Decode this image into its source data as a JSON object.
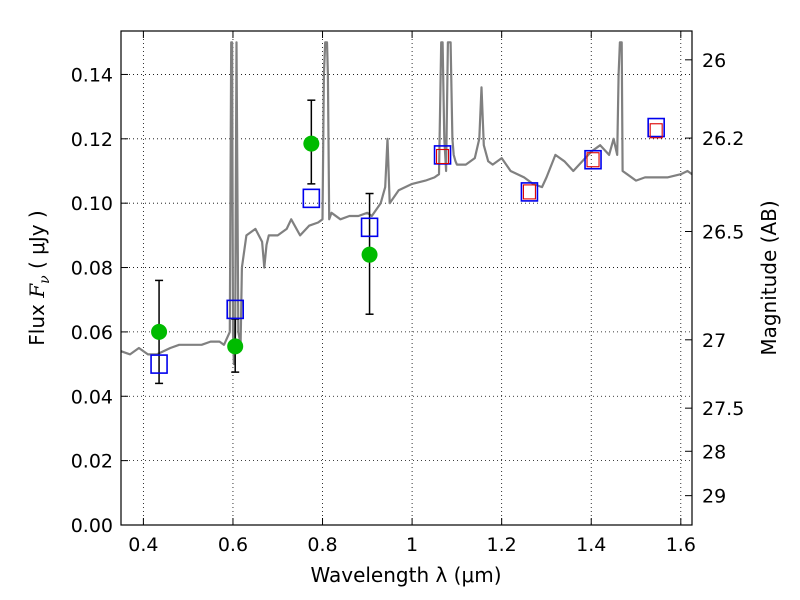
{
  "chart_data": {
    "type": "scatter",
    "xlabel": "Wavelength  λ (μm)",
    "ylabel": "Flux  F_ν  ( μJy )",
    "ylabel_parts": {
      "prefix": "Flux  ",
      "sym_main": "F",
      "sym_sub": "ν",
      "suffix": "  ( μJy )"
    },
    "y2label": "Magnitude (AB)",
    "xlim": [
      0.35,
      1.625
    ],
    "ylim": [
      0.0,
      0.1535
    ],
    "x_ticks": [
      0.4,
      0.6,
      0.8,
      1.0,
      1.2,
      1.4,
      1.6
    ],
    "x_tick_labels": [
      "0.4",
      "0.6",
      "0.8",
      "1",
      "1.2",
      "1.4",
      "1.6"
    ],
    "y_ticks": [
      0.0,
      0.02,
      0.04,
      0.06,
      0.08,
      0.1,
      0.12,
      0.14
    ],
    "y_tick_labels": [
      "0.00",
      "0.02",
      "0.04",
      "0.06",
      "0.08",
      "0.10",
      "0.12",
      "0.14"
    ],
    "mag_ticks": [
      26,
      26.2,
      26.5,
      27,
      27.5,
      28,
      29
    ],
    "mag_tick_labels": [
      "26",
      "26.2",
      "26.5",
      "27",
      "27.5",
      "28",
      "29"
    ],
    "grid": true,
    "colors": {
      "model": "#808080",
      "observed": "#00bb00",
      "model_box": "#0000ee",
      "inner_box": "#dd0000",
      "errorbar": "#000000"
    },
    "model_spectrum": {
      "x": [
        0.35,
        0.37,
        0.39,
        0.41,
        0.43,
        0.46,
        0.48,
        0.5,
        0.53,
        0.55,
        0.57,
        0.58,
        0.593,
        0.596,
        0.598,
        0.6,
        0.602,
        0.605,
        0.608,
        0.612,
        0.617,
        0.62,
        0.63,
        0.65,
        0.665,
        0.67,
        0.675,
        0.68,
        0.7,
        0.72,
        0.73,
        0.75,
        0.77,
        0.79,
        0.8,
        0.803,
        0.806,
        0.808,
        0.81,
        0.812,
        0.815,
        0.82,
        0.84,
        0.86,
        0.88,
        0.9,
        0.91,
        0.93,
        0.94,
        0.945,
        0.95,
        0.97,
        1.0,
        1.03,
        1.05,
        1.06,
        1.065,
        1.068,
        1.072,
        1.076,
        1.08,
        1.082,
        1.086,
        1.09,
        1.093,
        1.097,
        1.1,
        1.12,
        1.14,
        1.15,
        1.155,
        1.16,
        1.17,
        1.18,
        1.2,
        1.22,
        1.25,
        1.27,
        1.29,
        1.3,
        1.32,
        1.34,
        1.36,
        1.38,
        1.4,
        1.42,
        1.44,
        1.45,
        1.458,
        1.461,
        1.464,
        1.468,
        1.47,
        1.48,
        1.5,
        1.52,
        1.55,
        1.57,
        1.6,
        1.615,
        1.625
      ],
      "y": [
        0.054,
        0.053,
        0.055,
        0.053,
        0.053,
        0.055,
        0.056,
        0.056,
        0.056,
        0.057,
        0.057,
        0.056,
        0.06,
        0.15,
        0.15,
        0.06,
        0.05,
        0.06,
        0.15,
        0.06,
        0.056,
        0.08,
        0.09,
        0.092,
        0.088,
        0.08,
        0.087,
        0.09,
        0.09,
        0.092,
        0.095,
        0.09,
        0.093,
        0.094,
        0.095,
        0.14,
        0.15,
        0.15,
        0.15,
        0.14,
        0.095,
        0.097,
        0.095,
        0.096,
        0.096,
        0.097,
        0.096,
        0.1,
        0.105,
        0.12,
        0.1,
        0.104,
        0.106,
        0.107,
        0.108,
        0.109,
        0.15,
        0.15,
        0.12,
        0.11,
        0.15,
        0.15,
        0.15,
        0.12,
        0.115,
        0.113,
        0.112,
        0.112,
        0.114,
        0.12,
        0.136,
        0.118,
        0.113,
        0.112,
        0.114,
        0.11,
        0.108,
        0.106,
        0.105,
        0.108,
        0.115,
        0.113,
        0.11,
        0.113,
        0.116,
        0.118,
        0.115,
        0.12,
        0.115,
        0.14,
        0.15,
        0.15,
        0.11,
        0.109,
        0.107,
        0.108,
        0.108,
        0.108,
        0.109,
        0.11,
        0.109
      ]
    },
    "observed": {
      "x": [
        0.435,
        0.605,
        0.775,
        0.905
      ],
      "y": [
        0.06,
        0.0555,
        0.1185,
        0.084
      ],
      "yerr_low": [
        0.016,
        0.008,
        0.0125,
        0.0185
      ],
      "yerr_high": [
        0.016,
        0.0085,
        0.0135,
        0.019
      ]
    },
    "model_photometry": {
      "x": [
        0.435,
        0.605,
        0.775,
        0.905,
        1.068,
        1.262,
        1.404,
        1.545
      ],
      "y": [
        0.05,
        0.067,
        0.1015,
        0.0925,
        0.115,
        0.1035,
        0.1135,
        0.1235
      ]
    },
    "inner_boxes": {
      "x": [
        1.068,
        1.262,
        1.404,
        1.545
      ],
      "y": [
        0.1145,
        0.1035,
        0.1135,
        0.1225
      ]
    }
  }
}
